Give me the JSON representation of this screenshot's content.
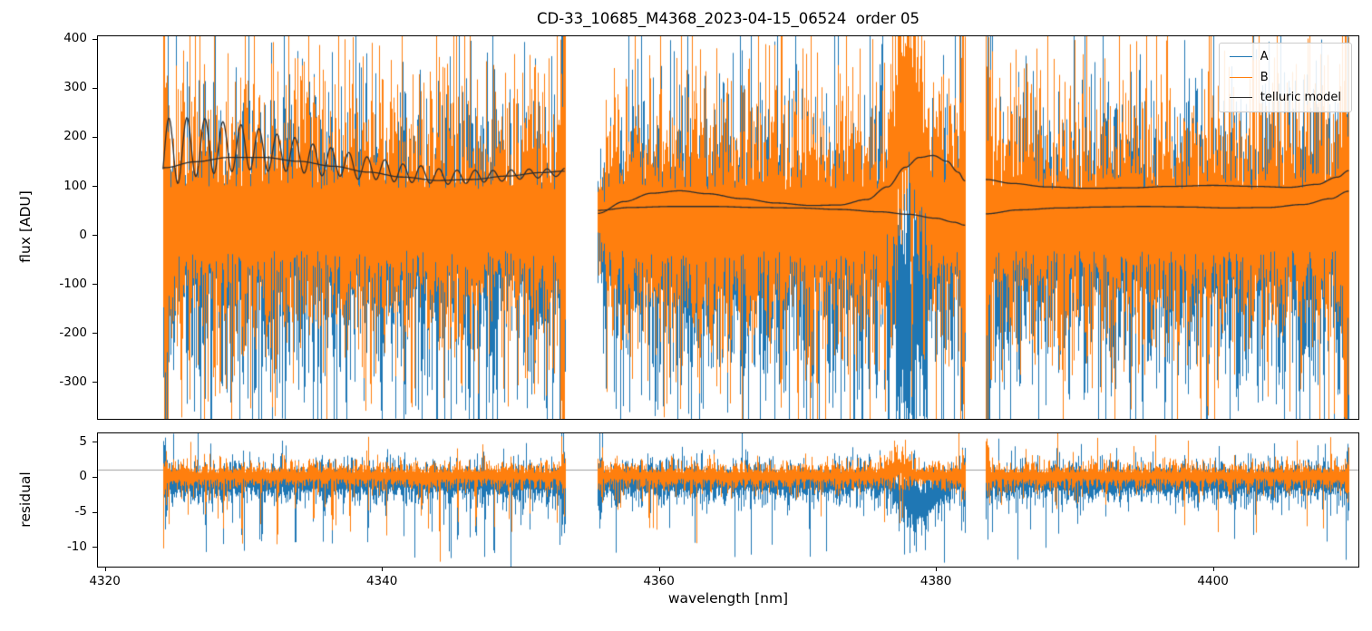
{
  "chart_data": {
    "type": "line",
    "title": "CD-33_10685_M4368_2023-04-15_06524  order 05",
    "xlabel": "wavelength [nm]",
    "xlim": [
      4319.5,
      4410.5
    ],
    "xticks": [
      4320,
      4340,
      4360,
      4380,
      4400
    ],
    "segments_nm": [
      [
        4324.2,
        4353.2
      ],
      [
        4355.6,
        4382.1
      ],
      [
        4383.6,
        4409.8
      ]
    ],
    "legend_position": "upper right",
    "series": [
      {
        "name": "A",
        "color": "#1f77b4"
      },
      {
        "name": "B",
        "color": "#ff7f0e"
      },
      {
        "name": "telluric model",
        "color": "#2e2e2e"
      }
    ],
    "flux_panel": {
      "ylabel": "flux [ADU]",
      "ylim": [
        -375,
        405
      ],
      "yticks": [
        400,
        300,
        200,
        100,
        0,
        -100,
        -200,
        -300
      ],
      "noise": {
        "A": {
          "center": -10,
          "sigma": 135,
          "base": 0.5,
          "spike_prob": 0.1,
          "spike_max": 220
        },
        "B": {
          "center": 30,
          "sigma": 125,
          "base": 0.5,
          "spike_prob": 0.13,
          "spike_max": 240
        }
      },
      "feature": {
        "x0": 4376.2,
        "x1": 4379.8,
        "peak": 4378.0,
        "A_shift": -200,
        "B_shift": 260
      },
      "telluric_model": {
        "segment1_smooth": [
          [
            4324.3,
            137
          ],
          [
            4326.5,
            149
          ],
          [
            4329,
            158
          ],
          [
            4331.5,
            158
          ],
          [
            4334,
            150
          ],
          [
            4336.5,
            140
          ],
          [
            4339,
            128
          ],
          [
            4341.5,
            118
          ],
          [
            4344,
            111
          ],
          [
            4346.5,
            113
          ],
          [
            4349,
            120
          ],
          [
            4351.5,
            127
          ],
          [
            4353.2,
            130
          ]
        ],
        "segment1_fringed": {
          "center": [
            [
              4324.3,
              168
            ],
            [
              4327,
              180
            ],
            [
              4330,
              178
            ],
            [
              4333,
              166
            ],
            [
              4336,
              150
            ],
            [
              4339,
              136
            ],
            [
              4342,
              125
            ],
            [
              4345,
              118
            ],
            [
              4348,
              120
            ],
            [
              4351,
              125
            ],
            [
              4353.2,
              128
            ]
          ],
          "fringe": {
            "x0": 4324.3,
            "period": 1.3,
            "amp0": 72,
            "decay": 13,
            "min_amp": 7
          }
        },
        "segment2_upper": [
          [
            4355.6,
            44
          ],
          [
            4357.5,
            68
          ],
          [
            4359.5,
            85
          ],
          [
            4361.5,
            90
          ],
          [
            4363.5,
            84
          ],
          [
            4366,
            74
          ],
          [
            4368.5,
            65
          ],
          [
            4371,
            60
          ],
          [
            4373,
            61
          ],
          [
            4375,
            72
          ],
          [
            4376.5,
            98
          ],
          [
            4377.8,
            138
          ],
          [
            4378.8,
            158
          ],
          [
            4379.8,
            162
          ],
          [
            4380.8,
            150
          ],
          [
            4381.6,
            128
          ],
          [
            4382.1,
            110
          ]
        ],
        "segment2_lower": [
          [
            4355.6,
            50
          ],
          [
            4358,
            56
          ],
          [
            4361,
            58
          ],
          [
            4364,
            58
          ],
          [
            4367,
            56
          ],
          [
            4370,
            55
          ],
          [
            4373,
            52
          ],
          [
            4376,
            47
          ],
          [
            4378,
            42
          ],
          [
            4380,
            34
          ],
          [
            4381.3,
            26
          ],
          [
            4382.1,
            20
          ]
        ],
        "segment3_upper": [
          [
            4383.6,
            113
          ],
          [
            4385.5,
            105
          ],
          [
            4388,
            98
          ],
          [
            4391,
            95
          ],
          [
            4394,
            96
          ],
          [
            4397,
            99
          ],
          [
            4400,
            101
          ],
          [
            4403,
            99
          ],
          [
            4405.5,
            97
          ],
          [
            4407.5,
            103
          ],
          [
            4409,
            118
          ],
          [
            4409.8,
            131
          ]
        ],
        "segment3_lower": [
          [
            4383.6,
            43
          ],
          [
            4386,
            51
          ],
          [
            4389,
            55
          ],
          [
            4392,
            57
          ],
          [
            4395,
            58
          ],
          [
            4398,
            57
          ],
          [
            4401,
            55
          ],
          [
            4404,
            56
          ],
          [
            4406.5,
            62
          ],
          [
            4408.5,
            74
          ],
          [
            4409.8,
            89
          ]
        ]
      }
    },
    "residual_panel": {
      "ylabel": "residual",
      "ylim": [
        -12.8,
        6.2
      ],
      "yticks": [
        5,
        0,
        -5,
        -10
      ],
      "hline_y": 1,
      "hline_color": "#9e9e9e",
      "noise": {
        "A": {
          "center": -0.8,
          "sigma": 1.6,
          "base": 0.4,
          "spike_prob": 0.035,
          "spike_max": 7.5
        },
        "B": {
          "center": 0.15,
          "sigma": 1.05,
          "base": 0.4,
          "spike_prob": 0.03,
          "spike_max": 6
        }
      },
      "feature": {
        "A": {
          "x0": 4376.4,
          "x1": 4380.8,
          "peak": 4378.7,
          "shift": -3.6,
          "sigma_mult": 2.2
        },
        "B": {
          "x0": 4375.8,
          "x1": 4378.8,
          "peak": 4377.2,
          "shift": 1.4,
          "sigma_mult": 1.5
        }
      },
      "fringe_spikes": {
        "x0": 4324.6,
        "x1": 4353.0,
        "period": 1.3,
        "width": 0.12,
        "depth": 6,
        "prob": 0.7
      }
    }
  }
}
